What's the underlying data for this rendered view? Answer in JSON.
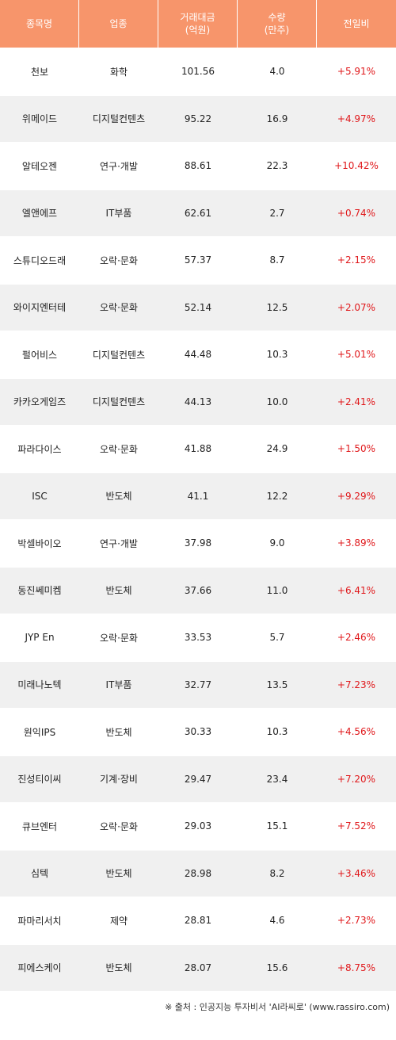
{
  "header": {
    "name": "종목명",
    "sector": "업종",
    "amount": "거래대금\n(억원)",
    "volume": "수량\n(만주)",
    "change": "전일비"
  },
  "rows": [
    {
      "name": "천보",
      "sector": "화학",
      "amount": "101.56",
      "volume": "4.0",
      "change": "+5.91%"
    },
    {
      "name": "위메이드",
      "sector": "디지털컨텐츠",
      "amount": "95.22",
      "volume": "16.9",
      "change": "+4.97%"
    },
    {
      "name": "알테오젠",
      "sector": "연구·개발",
      "amount": "88.61",
      "volume": "22.3",
      "change": "+10.42%"
    },
    {
      "name": "엘앤에프",
      "sector": "IT부품",
      "amount": "62.61",
      "volume": "2.7",
      "change": "+0.74%"
    },
    {
      "name": "스튜디오드래",
      "sector": "오락·문화",
      "amount": "57.37",
      "volume": "8.7",
      "change": "+2.15%"
    },
    {
      "name": "와이지엔터테",
      "sector": "오락·문화",
      "amount": "52.14",
      "volume": "12.5",
      "change": "+2.07%"
    },
    {
      "name": "펄어비스",
      "sector": "디지털컨텐츠",
      "amount": "44.48",
      "volume": "10.3",
      "change": "+5.01%"
    },
    {
      "name": "카카오게임즈",
      "sector": "디지털컨텐츠",
      "amount": "44.13",
      "volume": "10.0",
      "change": "+2.41%"
    },
    {
      "name": "파라다이스",
      "sector": "오락·문화",
      "amount": "41.88",
      "volume": "24.9",
      "change": "+1.50%"
    },
    {
      "name": "ISC",
      "sector": "반도체",
      "amount": "41.1",
      "volume": "12.2",
      "change": "+9.29%"
    },
    {
      "name": "박셀바이오",
      "sector": "연구·개발",
      "amount": "37.98",
      "volume": "9.0",
      "change": "+3.89%"
    },
    {
      "name": "동진쎄미켐",
      "sector": "반도체",
      "amount": "37.66",
      "volume": "11.0",
      "change": "+6.41%"
    },
    {
      "name": "JYP En",
      "sector": "오락·문화",
      "amount": "33.53",
      "volume": "5.7",
      "change": "+2.46%"
    },
    {
      "name": "미래나노텍",
      "sector": "IT부품",
      "amount": "32.77",
      "volume": "13.5",
      "change": "+7.23%"
    },
    {
      "name": "원익IPS",
      "sector": "반도체",
      "amount": "30.33",
      "volume": "10.3",
      "change": "+4.56%"
    },
    {
      "name": "진성티이씨",
      "sector": "기계·장비",
      "amount": "29.47",
      "volume": "23.4",
      "change": "+7.20%"
    },
    {
      "name": "큐브엔터",
      "sector": "오락·문화",
      "amount": "29.03",
      "volume": "15.1",
      "change": "+7.52%"
    },
    {
      "name": "심텍",
      "sector": "반도체",
      "amount": "28.98",
      "volume": "8.2",
      "change": "+3.46%"
    },
    {
      "name": "파마리서치",
      "sector": "제약",
      "amount": "28.81",
      "volume": "4.6",
      "change": "+2.73%"
    },
    {
      "name": "피에스케이",
      "sector": "반도체",
      "amount": "28.07",
      "volume": "15.6",
      "change": "+8.75%"
    }
  ],
  "footer": "※ 출처 : 인공지능 투자비서 'AI라씨로' (www.rassiro.com)"
}
